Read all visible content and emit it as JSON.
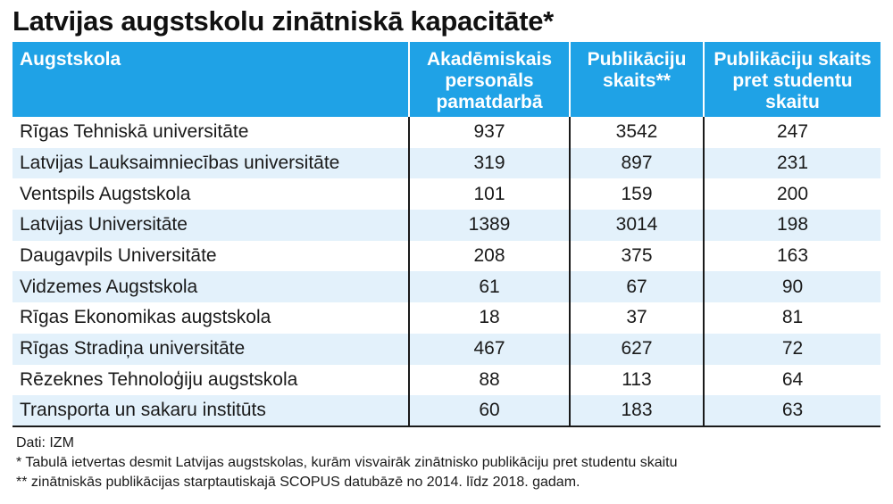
{
  "title": "Latvijas augstskolu zinātniskā kapacitāte*",
  "table": {
    "headers": [
      "Augstskola",
      "Akadēmiskais personāls pamatdarbā",
      "Publikāciju skaits**",
      "Publikāciju skaits pret studentu skaitu"
    ],
    "rows": [
      [
        "Rīgas Tehniskā universitāte",
        "937",
        "3542",
        "247"
      ],
      [
        "Latvijas Lauksaimniecības universitāte",
        "319",
        "897",
        "231"
      ],
      [
        "Ventspils Augstskola",
        "101",
        "159",
        "200"
      ],
      [
        "Latvijas Universitāte",
        "1389",
        "3014",
        "198"
      ],
      [
        "Daugavpils Universitāte",
        "208",
        "375",
        "163"
      ],
      [
        "Vidzemes Augstskola",
        "61",
        "67",
        "90"
      ],
      [
        "Rīgas Ekonomikas augstskola",
        "18",
        "37",
        "81"
      ],
      [
        "Rīgas Stradiņa universitāte",
        "467",
        "627",
        "72"
      ],
      [
        "Rēzeknes Tehnoloģiju augstskola",
        "88",
        "113",
        "64"
      ],
      [
        "Transporta un sakaru institūts",
        "60",
        "183",
        "63"
      ]
    ]
  },
  "notes": {
    "source": "Dati: IZM",
    "footnote1": "* Tabulā ietvertas desmit Latvijas augstskolas, kurām visvairāk zinātnisko publikāciju pret studentu skaitu",
    "footnote2": "** zinātniskās publikācijas starptautiskajā SCOPUS datubāzē no 2014. līdz 2018. gadam."
  },
  "colors": {
    "header_bg": "#1fa2e6",
    "stripe_bg": "#e3f1fb"
  }
}
